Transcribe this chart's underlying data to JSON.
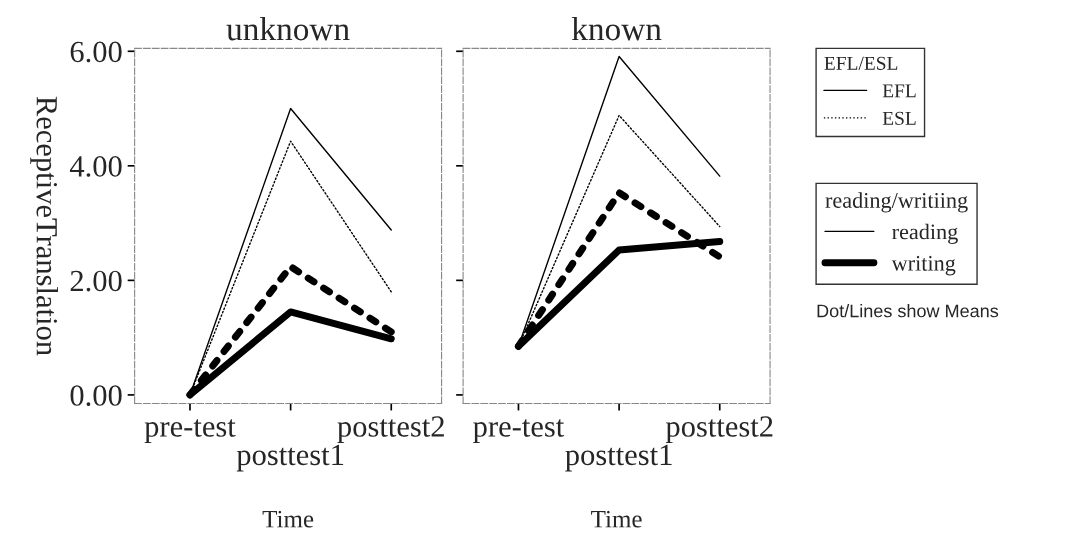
{
  "chart_data": [
    {
      "type": "line",
      "title": "unknown",
      "xlabel": "Time",
      "ylabel": "ReceptiveTranslation",
      "categories": [
        "pre-test",
        "posttest1",
        "posttest2"
      ],
      "ylim": [
        -0.15,
        6.05
      ],
      "yticks": [
        {
          "value": 0,
          "label": "0.00"
        },
        {
          "value": 2,
          "label": "2.00"
        },
        {
          "value": 4,
          "label": "4.00"
        },
        {
          "value": 6,
          "label": "6.00"
        }
      ],
      "series": [
        {
          "color": "#000000",
          "line_style": "solid",
          "values": [
            0.0,
            5.0,
            2.88
          ]
        },
        {
          "color": "#000000",
          "line_style": "dotted",
          "values": [
            0.0,
            4.43,
            1.8
          ]
        },
        {
          "color": "#000000",
          "line_style": "solid",
          "values": [
            0.0,
            1.45,
            0.98
          ]
        },
        {
          "color": "#000000",
          "line_style": "dotted",
          "values": [
            0.0,
            2.24,
            1.1
          ]
        }
      ]
    },
    {
      "type": "line",
      "title": "known",
      "xlabel": "Time",
      "categories": [
        "pre-test",
        "posttest1",
        "posttest2"
      ],
      "ylim": [
        -0.15,
        6.05
      ],
      "yticks": [
        {
          "value": 0,
          "label": null
        },
        {
          "value": 2,
          "label": null
        },
        {
          "value": 4,
          "label": null
        },
        {
          "value": 6,
          "label": null
        }
      ],
      "tick_labels": "x",
      "series": [
        {
          "color": "#000000",
          "line_style": "solid",
          "values": [
            0.85,
            5.91,
            3.82
          ]
        },
        {
          "color": "#000000",
          "line_style": "dotted",
          "values": [
            0.85,
            4.88,
            2.94
          ]
        },
        {
          "color": "#000000",
          "line_style": "solid",
          "values": [
            0.85,
            2.53,
            2.68
          ]
        },
        {
          "color": "#000000",
          "line_style": "dotted",
          "values": [
            0.85,
            3.53,
            2.41
          ]
        }
      ],
      "annotations": [
        "EFL/ESL",
        "EFL",
        "ESL",
        "reading/writiing",
        "reading",
        "writing",
        "Dot/Lines show Means"
      ]
    }
  ]
}
